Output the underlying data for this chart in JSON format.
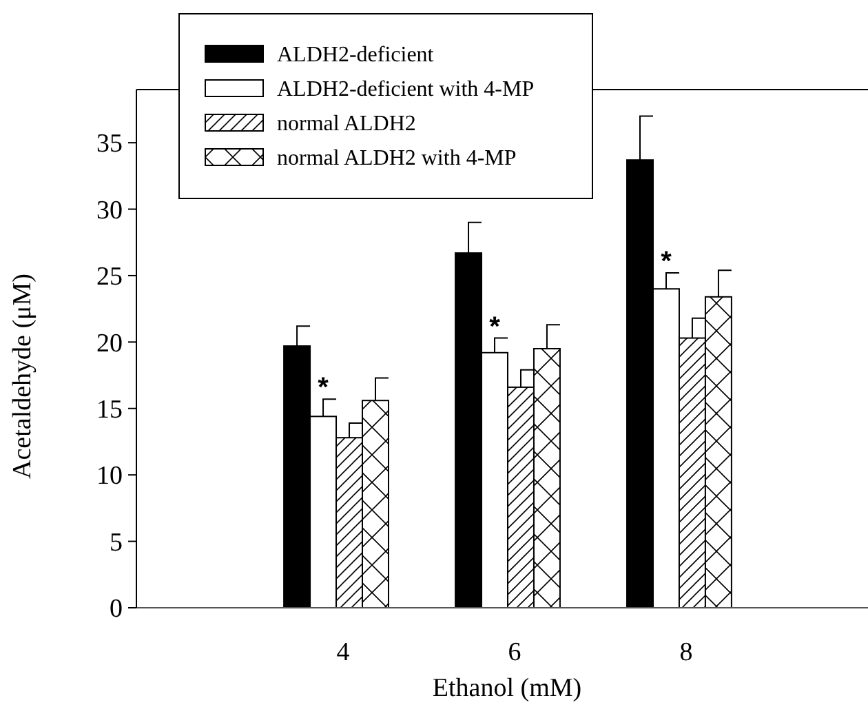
{
  "chart_data": {
    "type": "bar",
    "xlabel": "Ethanol (mM)",
    "ylabel": "Acetaldehyde (μM)",
    "categories": [
      "4",
      "6",
      "8"
    ],
    "series": [
      {
        "name": "ALDH2-deficient",
        "color": "#000000",
        "values": [
          19.7,
          26.7,
          33.7
        ],
        "errors": [
          [
            19.7,
            21.2
          ],
          [
            26.7,
            29.0
          ],
          [
            33.7,
            37.0
          ]
        ]
      },
      {
        "name": "ALDH2-deficient with 4-MP",
        "color": "#ffffff",
        "values": [
          14.4,
          19.2,
          24.0
        ],
        "errors": [
          [
            14.4,
            15.7
          ],
          [
            19.2,
            20.3
          ],
          [
            24.0,
            25.2
          ]
        ]
      },
      {
        "name": "normal ALDH2",
        "color": "#000000",
        "values": [
          12.8,
          16.6,
          20.3
        ],
        "errors": [
          [
            12.8,
            13.9
          ],
          [
            16.6,
            17.9
          ],
          [
            20.3,
            21.8
          ]
        ]
      },
      {
        "name": "normal ALDH2 with 4-MP",
        "color": "#000000",
        "values": [
          15.6,
          19.5,
          23.4
        ],
        "errors": [
          [
            15.6,
            17.3
          ],
          [
            19.5,
            21.3
          ],
          [
            23.4,
            25.4
          ]
        ]
      }
    ],
    "ylim": [
      0,
      39
    ],
    "yticks": [
      0,
      5,
      10,
      15,
      20,
      25,
      30,
      35
    ],
    "annotations": [
      "*",
      "*",
      "*"
    ],
    "legend": "top left"
  }
}
